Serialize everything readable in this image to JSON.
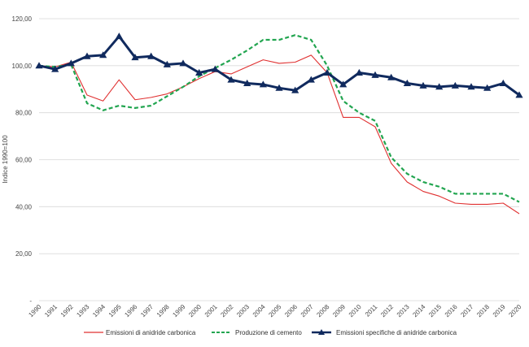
{
  "chart_data": {
    "type": "line",
    "title": "",
    "xlabel": "",
    "ylabel": "Indice 1990=100",
    "ylim": [
      0,
      120
    ],
    "y_ticks": [
      "-",
      "20,00",
      "40,00",
      "60,00",
      "80,00",
      "100,00",
      "120,00"
    ],
    "y_tick_values": [
      0,
      20,
      40,
      60,
      80,
      100,
      120
    ],
    "grid": "horizontal",
    "legend_position": "bottom",
    "x": [
      "1990",
      "1991",
      "1992",
      "1993",
      "1994",
      "1995",
      "1996",
      "1997",
      "1998",
      "1999",
      "2000",
      "2001",
      "2002",
      "2003",
      "2004",
      "2005",
      "2006",
      "2007",
      "2008",
      "2009",
      "2010",
      "2011",
      "2012",
      "2013",
      "2014",
      "2015",
      "2016",
      "2017",
      "2018",
      "2019",
      "2020"
    ],
    "series": [
      {
        "name": "Emissioni di anidride carbonica",
        "color": "#e03030",
        "style": "solid",
        "values": [
          100,
          99.5,
          101.5,
          87.5,
          85,
          94,
          85.5,
          86.5,
          88,
          91,
          94.5,
          97.5,
          96.5,
          99.5,
          102.5,
          101,
          101.5,
          104.5,
          97,
          78,
          78,
          74,
          58.5,
          50.5,
          46.5,
          44.5,
          41.5,
          41,
          41,
          41.5,
          37
        ]
      },
      {
        "name": "Produzione di cemento",
        "color": "#22a550",
        "style": "dashed",
        "values": [
          100,
          99.5,
          100.5,
          84,
          81,
          83,
          82,
          83,
          87,
          91,
          95.5,
          99,
          102.5,
          106.5,
          111,
          111,
          113,
          111,
          100,
          85,
          80,
          76.5,
          61,
          54,
          50.5,
          48.5,
          45.5,
          45.5,
          45.5,
          45.5,
          42
        ]
      },
      {
        "name": "Emissioni specifiche di anidride carbonica",
        "color": "#102a5e",
        "style": "solid-triangle",
        "values": [
          100,
          98.5,
          101,
          104,
          104.5,
          112.5,
          103.5,
          104,
          100.5,
          101,
          97,
          98.5,
          94,
          92.5,
          92,
          90.5,
          89.5,
          94,
          97,
          92,
          97,
          96,
          95,
          92.5,
          91.5,
          91,
          91.5,
          91,
          90.5,
          92.5,
          87.5
        ]
      }
    ]
  }
}
